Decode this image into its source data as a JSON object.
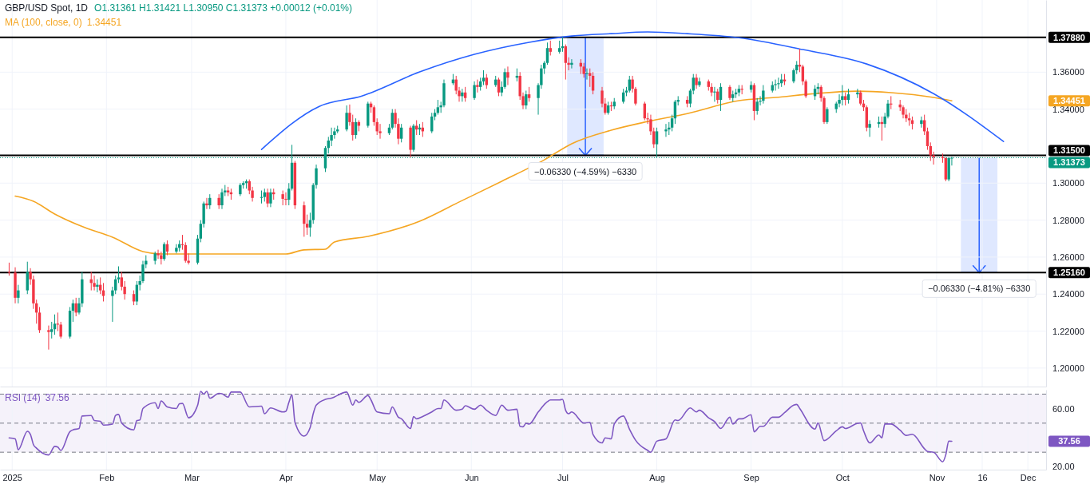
{
  "chart_data": [
    {
      "type": "candlestick",
      "title": "GBP/USD Spot, 1D",
      "subtitle": "O1.31361 H1.31421 L1.30950 C1.31373 +0.00012 (+0.01%)",
      "x": [
        "2024-12-31",
        "2025-01-02",
        "2025-01-03",
        "2025-01-06",
        "2025-01-07",
        "2025-01-08",
        "2025-01-09",
        "2025-01-10",
        "2025-01-13",
        "2025-01-14",
        "2025-01-15",
        "2025-01-16",
        "2025-01-17",
        "2025-01-20",
        "2025-01-21",
        "2025-01-22",
        "2025-01-23",
        "2025-01-24",
        "2025-01-27",
        "2025-01-28",
        "2025-01-29",
        "2025-01-30",
        "2025-01-31",
        "2025-02-03",
        "2025-02-04",
        "2025-02-05",
        "2025-02-06",
        "2025-02-07",
        "2025-02-10",
        "2025-02-11",
        "2025-02-12",
        "2025-02-13",
        "2025-02-14",
        "2025-02-17",
        "2025-02-18",
        "2025-02-19",
        "2025-02-20",
        "2025-02-21",
        "2025-02-24",
        "2025-02-25",
        "2025-02-26",
        "2025-02-27",
        "2025-02-28",
        "2025-03-03",
        "2025-03-04",
        "2025-03-05",
        "2025-03-06",
        "2025-03-07",
        "2025-03-10",
        "2025-03-11",
        "2025-03-12",
        "2025-03-13",
        "2025-03-14",
        "2025-03-17",
        "2025-03-18",
        "2025-03-19",
        "2025-03-20",
        "2025-03-21",
        "2025-03-24",
        "2025-03-25",
        "2025-03-26",
        "2025-03-27",
        "2025-03-28",
        "2025-03-31",
        "2025-04-01",
        "2025-04-02",
        "2025-04-03",
        "2025-04-04",
        "2025-04-07",
        "2025-04-08",
        "2025-04-09",
        "2025-04-10",
        "2025-04-11",
        "2025-04-14",
        "2025-04-15",
        "2025-04-16",
        "2025-04-17",
        "2025-04-18",
        "2025-04-21",
        "2025-04-22",
        "2025-04-23",
        "2025-04-24",
        "2025-04-25",
        "2025-04-28",
        "2025-04-29",
        "2025-04-30",
        "2025-05-01",
        "2025-05-02",
        "2025-05-05",
        "2025-05-06",
        "2025-05-07",
        "2025-05-08",
        "2025-05-09",
        "2025-05-12",
        "2025-05-13",
        "2025-05-14",
        "2025-05-15",
        "2025-05-16",
        "2025-05-19",
        "2025-05-20",
        "2025-05-21",
        "2025-05-22",
        "2025-05-23",
        "2025-05-26",
        "2025-05-27",
        "2025-05-28",
        "2025-05-29",
        "2025-05-30",
        "2025-06-02",
        "2025-06-03",
        "2025-06-04",
        "2025-06-05",
        "2025-06-06",
        "2025-06-09",
        "2025-06-10",
        "2025-06-11",
        "2025-06-12",
        "2025-06-13",
        "2025-06-16",
        "2025-06-17",
        "2025-06-18",
        "2025-06-19",
        "2025-06-20",
        "2025-06-23",
        "2025-06-24",
        "2025-06-25",
        "2025-06-26",
        "2025-06-27",
        "2025-06-30",
        "2025-07-01",
        "2025-07-02",
        "2025-07-03",
        "2025-07-04",
        "2025-07-07",
        "2025-07-08",
        "2025-07-09",
        "2025-07-10",
        "2025-07-11",
        "2025-07-14",
        "2025-07-15",
        "2025-07-16",
        "2025-07-17",
        "2025-07-18",
        "2025-07-21",
        "2025-07-22",
        "2025-07-23",
        "2025-07-24",
        "2025-07-25",
        "2025-07-28",
        "2025-07-29",
        "2025-07-30",
        "2025-07-31",
        "2025-08-01",
        "2025-08-04",
        "2025-08-05",
        "2025-08-06",
        "2025-08-07",
        "2025-08-08",
        "2025-08-11",
        "2025-08-12",
        "2025-08-13",
        "2025-08-14",
        "2025-08-15",
        "2025-08-18",
        "2025-08-19",
        "2025-08-20",
        "2025-08-21",
        "2025-08-22",
        "2025-08-25",
        "2025-08-26",
        "2025-08-27",
        "2025-08-28",
        "2025-08-29",
        "2025-09-01",
        "2025-09-02",
        "2025-09-03",
        "2025-09-04",
        "2025-09-05",
        "2025-09-08",
        "2025-09-09",
        "2025-09-10",
        "2025-09-11",
        "2025-09-12",
        "2025-09-15",
        "2025-09-16",
        "2025-09-17",
        "2025-09-18",
        "2025-09-19",
        "2025-09-22",
        "2025-09-23",
        "2025-09-24",
        "2025-09-25",
        "2025-09-26",
        "2025-09-29",
        "2025-09-30",
        "2025-10-01",
        "2025-10-02",
        "2025-10-03",
        "2025-10-06",
        "2025-10-07",
        "2025-10-08",
        "2025-10-09",
        "2025-10-10",
        "2025-10-13",
        "2025-10-14",
        "2025-10-15",
        "2025-10-16",
        "2025-10-17",
        "2025-10-20",
        "2025-10-21",
        "2025-10-22",
        "2025-10-23",
        "2025-10-24",
        "2025-10-27",
        "2025-10-28",
        "2025-10-29",
        "2025-10-30",
        "2025-10-31",
        "2025-11-03",
        "2025-11-04",
        "2025-11-05",
        "2025-11-06"
      ],
      "ohlc": [
        [
          1.252,
          1.257,
          1.25,
          1.2516
        ],
        [
          1.2516,
          1.2545,
          1.235,
          1.238
        ],
        [
          1.238,
          1.245,
          1.235,
          1.242
        ],
        [
          1.242,
          1.2575,
          1.24,
          1.252
        ],
        [
          1.252,
          1.254,
          1.245,
          1.248
        ],
        [
          1.248,
          1.25,
          1.232,
          1.235
        ],
        [
          1.235,
          1.237,
          1.224,
          1.23
        ],
        [
          1.23,
          1.233,
          1.219,
          1.2205
        ],
        [
          1.2205,
          1.223,
          1.21,
          1.2195
        ],
        [
          1.2195,
          1.225,
          1.216,
          1.221
        ],
        [
          1.221,
          1.229,
          1.218,
          1.224
        ],
        [
          1.224,
          1.23,
          1.22,
          1.2235
        ],
        [
          1.2235,
          1.225,
          1.216,
          1.217
        ],
        [
          1.217,
          1.233,
          1.216,
          1.231
        ],
        [
          1.231,
          1.237,
          1.225,
          1.235
        ],
        [
          1.235,
          1.238,
          1.228,
          1.23
        ],
        [
          1.23,
          1.238,
          1.229,
          1.235
        ],
        [
          1.235,
          1.252,
          1.233,
          1.248
        ],
        [
          1.248,
          1.252,
          1.242,
          1.246
        ],
        [
          1.246,
          1.25,
          1.242,
          1.244
        ],
        [
          1.244,
          1.248,
          1.241,
          1.245
        ],
        [
          1.245,
          1.249,
          1.24,
          1.242
        ],
        [
          1.242,
          1.246,
          1.236,
          1.239
        ],
        [
          1.239,
          1.244,
          1.225,
          1.242
        ],
        [
          1.242,
          1.25,
          1.24,
          1.248
        ],
        [
          1.248,
          1.255,
          1.246,
          1.249
        ],
        [
          1.249,
          1.252,
          1.242,
          1.244
        ],
        [
          1.244,
          1.247,
          1.237,
          1.24
        ],
        [
          1.24,
          1.242,
          1.234,
          1.236
        ],
        [
          1.236,
          1.247,
          1.234,
          1.245
        ],
        [
          1.245,
          1.25,
          1.242,
          1.247
        ],
        [
          1.247,
          1.258,
          1.246,
          1.256
        ],
        [
          1.256,
          1.261,
          1.254,
          1.258
        ],
        [
          1.258,
          1.263,
          1.256,
          1.262
        ],
        [
          1.262,
          1.264,
          1.259,
          1.261
        ],
        [
          1.261,
          1.263,
          1.256,
          1.259
        ],
        [
          1.259,
          1.268,
          1.258,
          1.267
        ],
        [
          1.267,
          1.269,
          1.261,
          1.263
        ],
        [
          1.263,
          1.267,
          1.262,
          1.265
        ],
        [
          1.265,
          1.269,
          1.263,
          1.267
        ],
        [
          1.267,
          1.272,
          1.264,
          1.2665
        ],
        [
          1.2665,
          1.268,
          1.257,
          1.258
        ],
        [
          1.258,
          1.262,
          1.256,
          1.257
        ],
        [
          1.257,
          1.272,
          1.256,
          1.27
        ],
        [
          1.27,
          1.28,
          1.268,
          1.278
        ],
        [
          1.278,
          1.29,
          1.276,
          1.289
        ],
        [
          1.289,
          1.292,
          1.286,
          1.288
        ],
        [
          1.288,
          1.294,
          1.286,
          1.292
        ],
        [
          1.292,
          1.294,
          1.286,
          1.288
        ],
        [
          1.288,
          1.297,
          1.286,
          1.295
        ],
        [
          1.295,
          1.299,
          1.293,
          1.296
        ],
        [
          1.296,
          1.298,
          1.293,
          1.295
        ],
        [
          1.295,
          1.297,
          1.291,
          1.294
        ],
        [
          1.294,
          1.3,
          1.293,
          1.299
        ],
        [
          1.299,
          1.301,
          1.297,
          1.3
        ],
        [
          1.3,
          1.302,
          1.297,
          1.301
        ],
        [
          1.301,
          1.302,
          1.294,
          1.296
        ],
        [
          1.296,
          1.298,
          1.29,
          1.292
        ],
        [
          1.292,
          1.296,
          1.289,
          1.2925
        ],
        [
          1.2925,
          1.297,
          1.29,
          1.295
        ],
        [
          1.295,
          1.297,
          1.287,
          1.289
        ],
        [
          1.289,
          1.297,
          1.287,
          1.295
        ],
        [
          1.295,
          1.297,
          1.291,
          1.294
        ],
        [
          1.294,
          1.296,
          1.288,
          1.2915
        ],
        [
          1.2915,
          1.295,
          1.288,
          1.291
        ],
        [
          1.291,
          1.3,
          1.288,
          1.297
        ],
        [
          1.297,
          1.3207,
          1.296,
          1.311
        ],
        [
          1.311,
          1.312,
          1.286,
          1.288
        ],
        [
          1.288,
          1.29,
          1.271,
          1.278
        ],
        [
          1.278,
          1.283,
          1.272,
          1.276
        ],
        [
          1.276,
          1.284,
          1.271,
          1.28
        ],
        [
          1.28,
          1.3,
          1.278,
          1.299
        ],
        [
          1.299,
          1.31,
          1.297,
          1.308
        ],
        [
          1.308,
          1.32,
          1.306,
          1.319
        ],
        [
          1.319,
          1.325,
          1.316,
          1.323
        ],
        [
          1.323,
          1.33,
          1.32,
          1.326
        ],
        [
          1.326,
          1.33,
          1.324,
          1.328
        ],
        [
          1.328,
          1.331,
          1.327,
          1.329
        ],
        [
          1.329,
          1.342,
          1.328,
          1.338
        ],
        [
          1.338,
          1.3425,
          1.331,
          1.333
        ],
        [
          1.333,
          1.337,
          1.323,
          1.326
        ],
        [
          1.326,
          1.335,
          1.324,
          1.333
        ],
        [
          1.333,
          1.334,
          1.328,
          1.331
        ],
        [
          1.331,
          1.344,
          1.33,
          1.343
        ],
        [
          1.343,
          1.344,
          1.338,
          1.341
        ],
        [
          1.341,
          1.342,
          1.331,
          1.333
        ],
        [
          1.333,
          1.335,
          1.326,
          1.328
        ],
        [
          1.328,
          1.332,
          1.324,
          1.327
        ],
        [
          1.327,
          1.332,
          1.326,
          1.33
        ],
        [
          1.33,
          1.34,
          1.329,
          1.338
        ],
        [
          1.338,
          1.34,
          1.33,
          1.332
        ],
        [
          1.332,
          1.335,
          1.321,
          1.324
        ],
        [
          1.324,
          1.332,
          1.322,
          1.33
        ],
        [
          1.33,
          1.331,
          1.314,
          1.318
        ],
        [
          1.318,
          1.332,
          1.317,
          1.331
        ],
        [
          1.331,
          1.334,
          1.326,
          1.329
        ],
        [
          1.329,
          1.332,
          1.326,
          1.33
        ],
        [
          1.33,
          1.333,
          1.325,
          1.328
        ],
        [
          1.328,
          1.338,
          1.327,
          1.336
        ],
        [
          1.336,
          1.34,
          1.334,
          1.338
        ],
        [
          1.338,
          1.345,
          1.337,
          1.341
        ],
        [
          1.341,
          1.344,
          1.338,
          1.342
        ],
        [
          1.342,
          1.356,
          1.341,
          1.354
        ],
        [
          1.354,
          1.359,
          1.353,
          1.356
        ],
        [
          1.356,
          1.358,
          1.348,
          1.35
        ],
        [
          1.35,
          1.352,
          1.344,
          1.347
        ],
        [
          1.347,
          1.351,
          1.344,
          1.349
        ],
        [
          1.349,
          1.352,
          1.344,
          1.346
        ],
        [
          1.346,
          1.355,
          1.345,
          1.353
        ],
        [
          1.353,
          1.356,
          1.349,
          1.352
        ],
        [
          1.352,
          1.357,
          1.35,
          1.355
        ],
        [
          1.355,
          1.361,
          1.353,
          1.357
        ],
        [
          1.357,
          1.359,
          1.351,
          1.353
        ],
        [
          1.353,
          1.358,
          1.352,
          1.356
        ],
        [
          1.356,
          1.357,
          1.347,
          1.349
        ],
        [
          1.349,
          1.355,
          1.347,
          1.352
        ],
        [
          1.352,
          1.362,
          1.351,
          1.36
        ],
        [
          1.36,
          1.363,
          1.353,
          1.357
        ],
        [
          1.357,
          1.362,
          1.355,
          1.358
        ],
        [
          1.358,
          1.36,
          1.345,
          1.347
        ],
        [
          1.347,
          1.349,
          1.34,
          1.342
        ],
        [
          1.342,
          1.35,
          1.34,
          1.348
        ],
        [
          1.348,
          1.352,
          1.344,
          1.346
        ],
        [
          1.346,
          1.354,
          1.337,
          1.353
        ],
        [
          1.353,
          1.364,
          1.351,
          1.362
        ],
        [
          1.362,
          1.366,
          1.359,
          1.365
        ],
        [
          1.365,
          1.376,
          1.364,
          1.373
        ],
        [
          1.373,
          1.377,
          1.369,
          1.371
        ],
        [
          1.371,
          1.377,
          1.37,
          1.373
        ],
        [
          1.373,
          1.3788,
          1.371,
          1.374
        ],
        [
          1.374,
          1.375,
          1.356,
          1.365
        ],
        [
          1.365,
          1.368,
          1.361,
          1.364
        ],
        [
          1.364,
          1.367,
          1.362,
          1.365
        ],
        [
          1.365,
          1.367,
          1.359,
          1.363
        ],
        [
          1.363,
          1.365,
          1.357,
          1.359
        ],
        [
          1.359,
          1.362,
          1.356,
          1.3595
        ],
        [
          1.3595,
          1.362,
          1.352,
          1.358
        ],
        [
          1.358,
          1.36,
          1.348,
          1.35
        ],
        [
          1.35,
          1.352,
          1.341,
          1.343
        ],
        [
          1.343,
          1.346,
          1.337,
          1.338
        ],
        [
          1.338,
          1.344,
          1.337,
          1.342
        ],
        [
          1.342,
          1.344,
          1.339,
          1.3415
        ],
        [
          1.3415,
          1.346,
          1.34,
          1.344
        ],
        [
          1.344,
          1.351,
          1.343,
          1.349
        ],
        [
          1.349,
          1.352,
          1.347,
          1.35
        ],
        [
          1.35,
          1.358,
          1.349,
          1.356
        ],
        [
          1.356,
          1.358,
          1.349,
          1.351
        ],
        [
          1.351,
          1.352,
          1.342,
          1.343
        ],
        [
          1.343,
          1.344,
          1.334,
          1.335
        ],
        [
          1.335,
          1.338,
          1.332,
          1.3345
        ],
        [
          1.3345,
          1.337,
          1.326,
          1.328
        ],
        [
          1.328,
          1.33,
          1.319,
          1.321
        ],
        [
          1.321,
          1.33,
          1.314,
          1.328
        ],
        [
          1.328,
          1.332,
          1.325,
          1.329
        ],
        [
          1.329,
          1.333,
          1.326,
          1.33
        ],
        [
          1.33,
          1.337,
          1.328,
          1.335
        ],
        [
          1.335,
          1.345,
          1.332,
          1.344
        ],
        [
          1.344,
          1.347,
          1.342,
          1.345
        ],
        [
          1.345,
          1.347,
          1.341,
          1.343
        ],
        [
          1.343,
          1.351,
          1.341,
          1.35
        ],
        [
          1.35,
          1.359,
          1.348,
          1.357
        ],
        [
          1.357,
          1.359,
          1.351,
          1.353
        ],
        [
          1.353,
          1.357,
          1.352,
          1.355
        ],
        [
          1.355,
          1.356,
          1.35,
          1.352
        ],
        [
          1.352,
          1.354,
          1.347,
          1.349
        ],
        [
          1.349,
          1.352,
          1.344,
          1.3495
        ],
        [
          1.3495,
          1.351,
          1.343,
          1.345
        ],
        [
          1.345,
          1.354,
          1.339,
          1.352
        ],
        [
          1.352,
          1.353,
          1.345,
          1.346
        ],
        [
          1.346,
          1.35,
          1.344,
          1.348
        ],
        [
          1.348,
          1.351,
          1.346,
          1.349
        ],
        [
          1.349,
          1.353,
          1.347,
          1.351
        ],
        [
          1.351,
          1.353,
          1.348,
          1.3505
        ],
        [
          1.3505,
          1.355,
          1.349,
          1.353
        ],
        [
          1.353,
          1.354,
          1.334,
          1.339
        ],
        [
          1.339,
          1.346,
          1.337,
          1.344
        ],
        [
          1.344,
          1.347,
          1.342,
          1.3445
        ],
        [
          1.3445,
          1.353,
          1.343,
          1.35
        ],
        [
          1.35,
          1.355,
          1.349,
          1.353
        ],
        [
          1.353,
          1.356,
          1.35,
          1.3535
        ],
        [
          1.3535,
          1.357,
          1.351,
          1.354
        ],
        [
          1.354,
          1.359,
          1.352,
          1.356
        ],
        [
          1.356,
          1.359,
          1.353,
          1.355
        ],
        [
          1.355,
          1.362,
          1.354,
          1.361
        ],
        [
          1.361,
          1.366,
          1.359,
          1.364
        ],
        [
          1.364,
          1.3726,
          1.36,
          1.363
        ],
        [
          1.363,
          1.364,
          1.353,
          1.355
        ],
        [
          1.355,
          1.356,
          1.346,
          1.347
        ],
        [
          1.347,
          1.353,
          1.345,
          1.351
        ],
        [
          1.351,
          1.354,
          1.348,
          1.352
        ],
        [
          1.352,
          1.353,
          1.344,
          1.346
        ],
        [
          1.346,
          1.347,
          1.332,
          1.333
        ],
        [
          1.333,
          1.341,
          1.332,
          1.34
        ],
        [
          1.34,
          1.344,
          1.338,
          1.343
        ],
        [
          1.343,
          1.348,
          1.341,
          1.345
        ],
        [
          1.345,
          1.353,
          1.342,
          1.347
        ],
        [
          1.347,
          1.349,
          1.342,
          1.345
        ],
        [
          1.345,
          1.351,
          1.343,
          1.348
        ],
        [
          1.348,
          1.351,
          1.346,
          1.349
        ],
        [
          1.349,
          1.35,
          1.342,
          1.343
        ],
        [
          1.343,
          1.345,
          1.339,
          1.341
        ],
        [
          1.341,
          1.342,
          1.328,
          1.33
        ],
        [
          1.33,
          1.334,
          1.325,
          1.332
        ],
        [
          1.332,
          1.336,
          1.33,
          1.333
        ],
        [
          1.333,
          1.336,
          1.323,
          1.332
        ],
        [
          1.332,
          1.338,
          1.33,
          1.336
        ],
        [
          1.336,
          1.345,
          1.335,
          1.343
        ],
        [
          1.343,
          1.347,
          1.34,
          1.3425
        ],
        [
          1.3425,
          1.345,
          1.339,
          1.341
        ],
        [
          1.341,
          1.342,
          1.335,
          1.337
        ],
        [
          1.337,
          1.34,
          1.333,
          1.335
        ],
        [
          1.335,
          1.338,
          1.331,
          1.334
        ],
        [
          1.334,
          1.336,
          1.329,
          1.332
        ],
        [
          1.332,
          1.336,
          1.33,
          1.334
        ],
        [
          1.334,
          1.337,
          1.326,
          1.328
        ],
        [
          1.328,
          1.33,
          1.318,
          1.32
        ],
        [
          1.32,
          1.322,
          1.312,
          1.315
        ],
        [
          1.315,
          1.317,
          1.31,
          1.314
        ],
        [
          1.314,
          1.316,
          1.311,
          1.3135
        ],
        [
          1.3135,
          1.314,
          1.301,
          1.302
        ],
        [
          1.302,
          1.314,
          1.301,
          1.3136
        ],
        [
          1.31361,
          1.31421,
          1.3095,
          1.31373
        ]
      ],
      "series": [
        {
          "type": "line",
          "name": "MA (100, close, 0)",
          "color": "#f5a623",
          "x": [
            "2025-01-02",
            "2025-01-08",
            "2025-01-15",
            "2025-01-25",
            "2025-02-03",
            "2025-02-13",
            "2025-02-19",
            "2025-03-03",
            "2025-03-11",
            "2025-04-01",
            "2025-04-07",
            "2025-04-14",
            "2025-04-17",
            "2025-04-28",
            "2025-05-15",
            "2025-05-28",
            "2025-06-11",
            "2025-06-25",
            "2025-07-04",
            "2025-07-17",
            "2025-07-29",
            "2025-08-11",
            "2025-08-28",
            "2025-09-09",
            "2025-09-22",
            "2025-10-06",
            "2025-10-17",
            "2025-10-31",
            "2025-11-06"
          ],
          "values": [
            1.293,
            1.2902,
            1.2833,
            1.2759,
            1.2708,
            1.263,
            1.2617,
            1.2617,
            1.2617,
            1.2617,
            1.2639,
            1.2643,
            1.2682,
            1.2712,
            1.2794,
            1.2898,
            1.301,
            1.3126,
            1.3213,
            1.3286,
            1.3333,
            1.3376,
            1.3446,
            1.3463,
            1.3484,
            1.3497,
            1.3489,
            1.3463,
            1.34451
          ]
        },
        {
          "type": "line",
          "color": "#2962ff",
          "x": [
            "2025-03-24",
            "2025-04-12",
            "2025-04-26",
            "2025-05-15",
            "2025-06-02",
            "2025-06-20",
            "2025-07-04",
            "2025-07-17",
            "2025-07-29",
            "2025-08-11",
            "2025-08-28",
            "2025-09-18",
            "2025-10-09",
            "2025-10-31",
            "2025-11-23"
          ],
          "values": [
            1.3182,
            1.3415,
            1.3471,
            1.3601,
            1.3696,
            1.3761,
            1.3795,
            1.3808,
            1.3817,
            1.3808,
            1.3786,
            1.3722,
            1.3644,
            1.3484,
            1.3225
          ]
        }
      ],
      "xlim": [
        "2024-12-28",
        "2025-12-07"
      ],
      "xticks": [
        {
          "value": "2025-01-01",
          "label": null
        },
        {
          "value": "2025-02-01",
          "label": null
        },
        {
          "value": "2025-03-01",
          "label": null
        },
        {
          "value": "2025-04-01",
          "label": null
        },
        {
          "value": "2025-05-01",
          "label": null
        },
        {
          "value": "2025-06-01",
          "label": null
        },
        {
          "value": "2025-07-01",
          "label": null
        },
        {
          "value": "2025-08-01",
          "label": null
        },
        {
          "value": "2025-09-01",
          "label": null
        },
        {
          "value": "2025-10-01",
          "label": null
        },
        {
          "value": "2025-11-01",
          "label": null
        },
        {
          "value": "2025-11-16",
          "label": null
        },
        {
          "value": "2025-12-01",
          "label": null
        }
      ],
      "ylim": [
        1.19,
        1.399
      ],
      "yticks": [
        {
          "value": 1.2,
          "label": "1.20000"
        },
        {
          "value": 1.22,
          "label": "1.22000"
        },
        {
          "value": 1.24,
          "label": "1.24000"
        },
        {
          "value": 1.26,
          "label": "1.26000"
        },
        {
          "value": 1.28,
          "label": "1.28000"
        },
        {
          "value": 1.3,
          "label": "1.30000"
        },
        {
          "value": 1.34,
          "label": "1.34000"
        },
        {
          "value": 1.36,
          "label": "1.36000"
        }
      ],
      "tick_labels": "y",
      "grid": true,
      "ref_lines": [
        {
          "axis": "y",
          "value": 1.3788,
          "label": "1.37880",
          "color": "#000000",
          "line_style": "solid"
        },
        {
          "axis": "y",
          "value": 1.315,
          "label": "1.31500",
          "color": "#000000",
          "line_style": "solid"
        },
        {
          "axis": "y",
          "value": 1.2516,
          "label": "1.25160",
          "color": "#000000",
          "line_style": "solid"
        },
        {
          "axis": "y",
          "value": 1.31373,
          "label": "1.31373",
          "color": "#089981",
          "line_style": "dotted"
        }
      ],
      "annotations": [
        {
          "text": "−0.06330 (−4.59%) −6330",
          "x": "2025-07-08T12:00",
          "y": 1.315
        },
        {
          "text": "−0.06330 (−4.81%) −6330",
          "x": "2025-11-15",
          "y": 1.2516
        },
        "1.34451",
        "1.34451"
      ]
    },
    {
      "type": "line",
      "series": [
        {
          "name": "RSI (14)",
          "color": "#7e57c2",
          "x": [
            "2024-12-31",
            "2025-01-02",
            "2025-01-03",
            "2025-01-06",
            "2025-01-07",
            "2025-01-08",
            "2025-01-09",
            "2025-01-13",
            "2025-01-15",
            "2025-01-16",
            "2025-01-17",
            "2025-01-20",
            "2025-01-21",
            "2025-01-23",
            "2025-01-24",
            "2025-01-27",
            "2025-01-28",
            "2025-01-30",
            "2025-01-31",
            "2025-02-03",
            "2025-02-04",
            "2025-02-05",
            "2025-02-06",
            "2025-02-10",
            "2025-02-11",
            "2025-02-12",
            "2025-02-13",
            "2025-02-17",
            "2025-02-18",
            "2025-02-19",
            "2025-02-21",
            "2025-02-24",
            "2025-02-25",
            "2025-02-26",
            "2025-02-28",
            "2025-03-03",
            "2025-03-04",
            "2025-03-05",
            "2025-03-06",
            "2025-03-07",
            "2025-03-10",
            "2025-03-11",
            "2025-03-13",
            "2025-03-14",
            "2025-03-17",
            "2025-03-20",
            "2025-03-24",
            "2025-03-25",
            "2025-03-27",
            "2025-03-31",
            "2025-04-01",
            "2025-04-02",
            "2025-04-03",
            "2025-04-04",
            "2025-04-07",
            "2025-04-09",
            "2025-04-10",
            "2025-04-11",
            "2025-04-14",
            "2025-04-16",
            "2025-04-21",
            "2025-04-23",
            "2025-04-24",
            "2025-04-25",
            "2025-04-28",
            "2025-04-29",
            "2025-05-01",
            "2025-05-05",
            "2025-05-06",
            "2025-05-08",
            "2025-05-09",
            "2025-05-12",
            "2025-05-13",
            "2025-05-14",
            "2025-05-16",
            "2025-05-19",
            "2025-05-21",
            "2025-05-22",
            "2025-05-23",
            "2025-05-27",
            "2025-05-29",
            "2025-05-30",
            "2025-06-02",
            "2025-06-04",
            "2025-06-06",
            "2025-06-09",
            "2025-06-11",
            "2025-06-13",
            "2025-06-16",
            "2025-06-17",
            "2025-06-18",
            "2025-06-19",
            "2025-06-20",
            "2025-06-23",
            "2025-06-26",
            "2025-06-27",
            "2025-06-30",
            "2025-07-01",
            "2025-07-02",
            "2025-07-03",
            "2025-07-04",
            "2025-07-08",
            "2025-07-10",
            "2025-07-11",
            "2025-07-14",
            "2025-07-15",
            "2025-07-17",
            "2025-07-18",
            "2025-07-21",
            "2025-07-23",
            "2025-07-25",
            "2025-07-29",
            "2025-07-30",
            "2025-08-01",
            "2025-08-04",
            "2025-08-07",
            "2025-08-08",
            "2025-08-12",
            "2025-08-14",
            "2025-08-15",
            "2025-08-18",
            "2025-08-20",
            "2025-08-22",
            "2025-08-25",
            "2025-08-26",
            "2025-08-28",
            "2025-08-29",
            "2025-09-01",
            "2025-09-02",
            "2025-09-04",
            "2025-09-05",
            "2025-09-08",
            "2025-09-10",
            "2025-09-12",
            "2025-09-15",
            "2025-09-16",
            "2025-09-17",
            "2025-09-22",
            "2025-09-23",
            "2025-09-25",
            "2025-09-29",
            "2025-10-01",
            "2025-10-02",
            "2025-10-06",
            "2025-10-07",
            "2025-10-08",
            "2025-10-10",
            "2025-10-13",
            "2025-10-14",
            "2025-10-15",
            "2025-10-17",
            "2025-10-20",
            "2025-10-22",
            "2025-10-24",
            "2025-10-28",
            "2025-10-29",
            "2025-10-31",
            "2025-11-03",
            "2025-11-04",
            "2025-11-05",
            "2025-11-06"
          ],
          "values": [
            39.9,
            39.2,
            31.7,
            44.4,
            42.3,
            35.2,
            32.8,
            28.1,
            34.0,
            33.5,
            31.2,
            44.2,
            45.4,
            46.3,
            54.9,
            55.3,
            51.8,
            51.3,
            48.7,
            49.4,
            55.3,
            56.0,
            50.1,
            45.4,
            51.8,
            52.2,
            60.1,
            64.1,
            60.1,
            65.3,
            61.2,
            60.1,
            63.4,
            63.6,
            53.7,
            62.4,
            71.9,
            70.0,
            71.9,
            67.2,
            70.5,
            70.2,
            67.9,
            71.4,
            71.4,
            61.2,
            61.7,
            56.5,
            60.5,
            57.7,
            58.2,
            64.3,
            69.5,
            50.6,
            41.1,
            47.0,
            56.5,
            62.4,
            66.4,
            67.2,
            71.4,
            62.4,
            66.0,
            64.3,
            69.1,
            66.0,
            57.7,
            56.5,
            61.2,
            54.1,
            53.0,
            46.3,
            54.6,
            53.0,
            54.6,
            57.7,
            60.1,
            60.1,
            66.0,
            58.9,
            59.6,
            62.0,
            59.6,
            62.4,
            58.9,
            55.3,
            62.4,
            58.9,
            59.6,
            47.8,
            47.5,
            49.9,
            49.4,
            57.7,
            64.8,
            66.0,
            66.0,
            66.4,
            58.9,
            56.5,
            57.7,
            50.1,
            50.6,
            42.3,
            36.4,
            39.9,
            39.2,
            49.4,
            54.9,
            45.9,
            38.3,
            31.2,
            30.0,
            37.6,
            39.2,
            52.2,
            51.8,
            60.5,
            57.7,
            58.9,
            53.7,
            51.1,
            46.3,
            54.1,
            49.4,
            53.0,
            53.0,
            55.8,
            44.0,
            47.8,
            47.8,
            54.1,
            54.1,
            57.2,
            62.4,
            62.9,
            60.1,
            45.9,
            50.1,
            38.0,
            44.7,
            47.5,
            46.3,
            49.9,
            50.1,
            44.7,
            36.4,
            41.8,
            39.9,
            49.4,
            49.4,
            45.1,
            41.6,
            42.3,
            32.4,
            30.5,
            30.0,
            23.4,
            28.1,
            37.6,
            37.56
          ]
        }
      ],
      "xlim": [
        "2024-12-28",
        "2025-12-07"
      ],
      "xticks": [
        {
          "value": "2025-01-01",
          "label": "2025"
        },
        {
          "value": "2025-02-01",
          "label": "Feb"
        },
        {
          "value": "2025-03-01",
          "label": "Mar"
        },
        {
          "value": "2025-04-01",
          "label": "Apr"
        },
        {
          "value": "2025-05-01",
          "label": "May"
        },
        {
          "value": "2025-06-01",
          "label": "Jun"
        },
        {
          "value": "2025-07-01",
          "label": "Jul"
        },
        {
          "value": "2025-08-01",
          "label": "Aug"
        },
        {
          "value": "2025-09-01",
          "label": "Sep"
        },
        {
          "value": "2025-10-01",
          "label": "Oct"
        },
        {
          "value": "2025-11-01",
          "label": "Nov"
        },
        {
          "value": "2025-11-16",
          "label": "16"
        },
        {
          "value": "2025-12-01",
          "label": "Dec"
        }
      ],
      "ylim": [
        18,
        73
      ],
      "yticks": [
        {
          "value": 20,
          "label": "20.00"
        },
        {
          "value": 60,
          "label": "60.00"
        }
      ],
      "grid": "x",
      "ref_lines": [
        {
          "axis": "y",
          "value": 70,
          "color": "#787b86",
          "line_style": "dashed"
        },
        {
          "axis": "y",
          "value": 50,
          "color": "#787b86",
          "line_style": "dashed"
        },
        {
          "axis": "y",
          "value": 30,
          "color": "#787b86",
          "line_style": "dashed"
        }
      ],
      "bands": [
        {
          "axis": "y",
          "from": 30,
          "to": 70,
          "color": "#7e57c2"
        }
      ],
      "annotations": [
        "37.56",
        "37.56"
      ]
    }
  ]
}
